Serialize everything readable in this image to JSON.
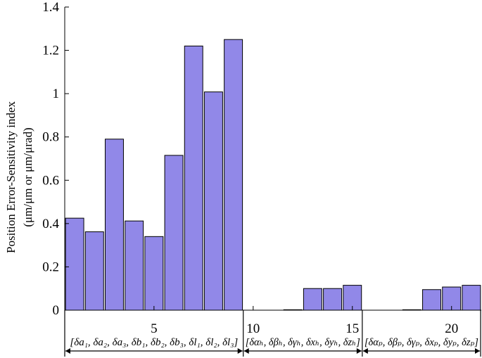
{
  "chart_data": {
    "type": "bar",
    "title": "",
    "xlabel": "",
    "ylabel": "Position Error-Sensitivity index",
    "ylabel_unit": "(μm/μm or μm/μrad)",
    "ylim": [
      0,
      1.4
    ],
    "yticks": [
      "0",
      "0.2",
      "0.4",
      "0.6",
      "0.8",
      "1",
      "1.2",
      "1.4"
    ],
    "ytick_values": [
      0,
      0.2,
      0.4,
      0.6,
      0.8,
      1.0,
      1.2,
      1.4
    ],
    "xlim": [
      0.5,
      21.5
    ],
    "xticks": [
      "5",
      "10",
      "15",
      "20"
    ],
    "xtick_values": [
      5,
      10,
      15,
      20
    ],
    "x": [
      1,
      2,
      3,
      4,
      5,
      6,
      7,
      8,
      9,
      10,
      11,
      12,
      13,
      14,
      15,
      16,
      17,
      18,
      19,
      20,
      21
    ],
    "values": [
      0.425,
      0.362,
      0.79,
      0.412,
      0.34,
      0.715,
      1.22,
      1.008,
      1.25,
      0.0,
      0.0,
      0.002,
      0.1,
      0.1,
      0.115,
      0.0,
      0.0,
      0.002,
      0.095,
      0.107,
      0.115
    ],
    "bar_color": "#9188e8",
    "bar_edge_color": "#000000",
    "grid": false,
    "groups": [
      {
        "label": "[δa₁, δa₂, δa₃, δb₁, δb₂, δb₃, δl₁, δl₂, δl₃]",
        "x_start": 0.5,
        "x_end": 9.5
      },
      {
        "label": "[δαₕ, δβₕ, δγₕ, δxₕ, δyₕ, δzₕ]",
        "x_start": 9.5,
        "x_end": 15.5
      },
      {
        "label": "[δαₚ, δβₚ, δγₚ, δxₚ, δyₚ, δzₚ]",
        "x_start": 15.5,
        "x_end": 21.5
      }
    ]
  }
}
